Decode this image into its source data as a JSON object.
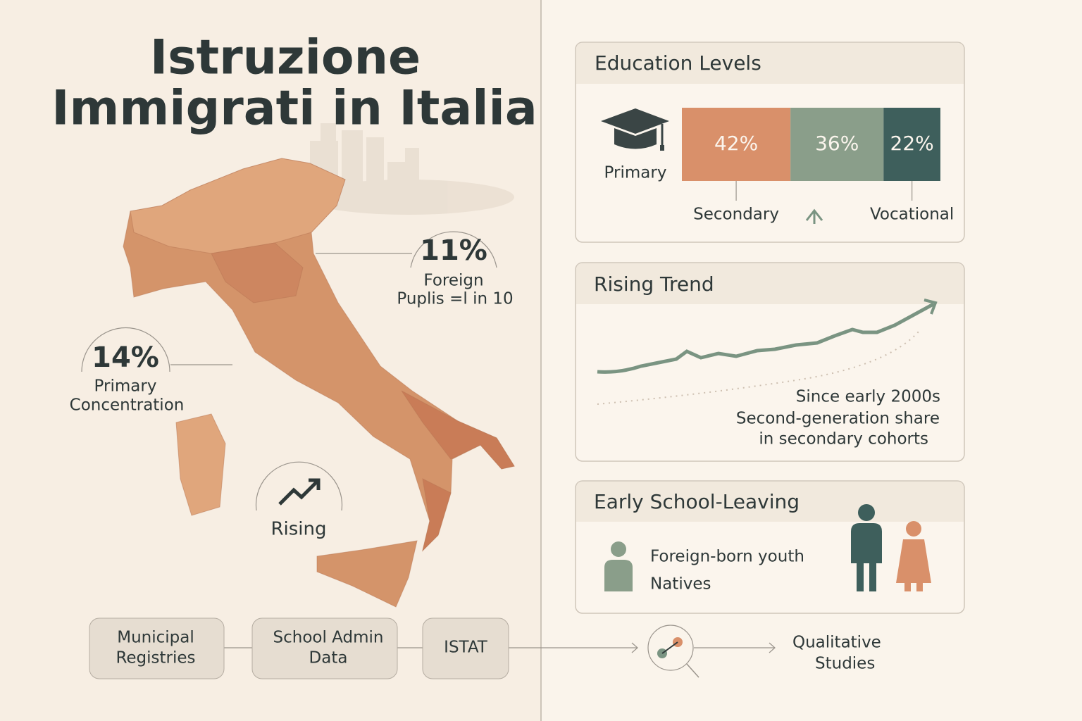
{
  "header": {
    "title": [
      "Istruzione",
      "Immigrati in Italia"
    ]
  },
  "map": {
    "callouts": [
      {
        "value": "11%",
        "lines": [
          "Foreign",
          "Puplis =l in 10"
        ]
      },
      {
        "value": "14%",
        "lines": [
          "Primary",
          "Concentration"
        ]
      },
      {
        "lines": [
          "Rising"
        ]
      }
    ]
  },
  "sources": {
    "steps": [
      [
        "Municipal",
        "Registries"
      ],
      [
        "School Admin",
        "Data"
      ],
      [
        "ISTAT"
      ]
    ],
    "result": [
      "Qualitative",
      "Studies"
    ]
  },
  "education_levels": {
    "title": "Education Levels",
    "icon_label": "Primary",
    "segments": [
      {
        "name": "Secondary",
        "value": 42,
        "value_label": "42%",
        "color": "#d9906a"
      },
      {
        "value": 36,
        "value_label": "36%",
        "color": "#8a9e8a"
      },
      {
        "name": "Vocational",
        "value": 22,
        "value_label": "22%",
        "color": "#3e5f5c"
      }
    ]
  },
  "rising_trend": {
    "title": "Rising Trend",
    "note": [
      "Since early 2000s",
      "Second-generation share",
      "in secondary cohorts"
    ]
  },
  "early_school_leaving": {
    "title": "Early School-Leaving",
    "legend": [
      "Foreign-born youth",
      "Natives"
    ]
  }
}
